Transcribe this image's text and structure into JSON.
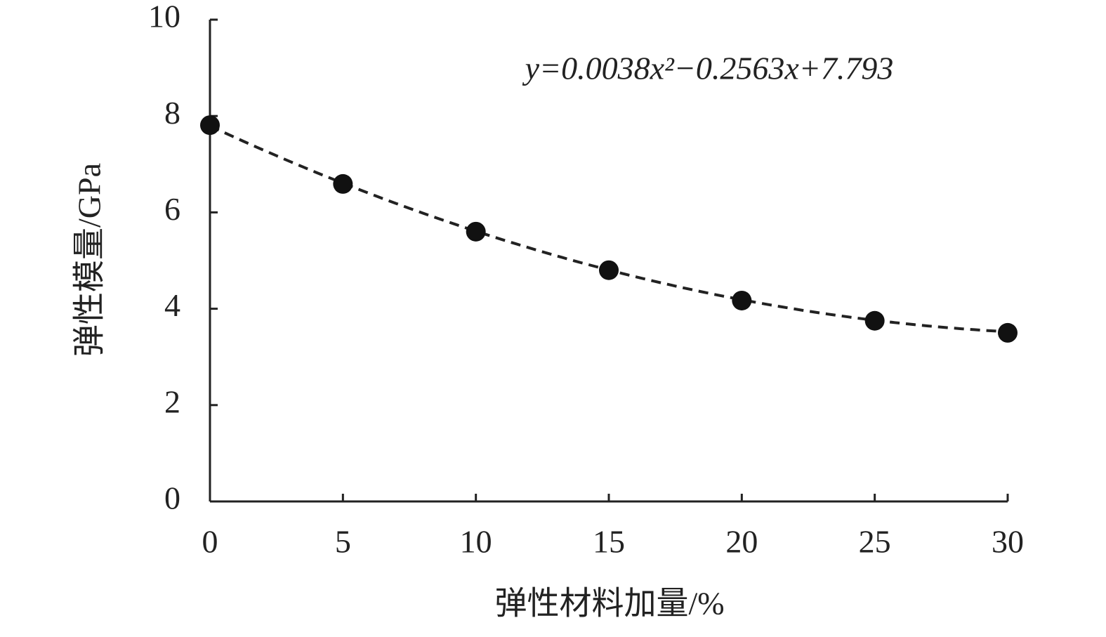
{
  "chart_data": {
    "type": "scatter",
    "x_label": "弹性材料加量/%",
    "y_label": "弹性模量/GPa",
    "annotation": "y=0.0038x²−0.2563x+7.793",
    "x": [
      0,
      5,
      10,
      15,
      20,
      25,
      30
    ],
    "values": [
      7.81,
      6.59,
      5.6,
      4.8,
      4.17,
      3.75,
      3.5
    ],
    "color": "#111111",
    "trendline": {
      "coefficients": [
        0.0038,
        -0.2563,
        7.793
      ]
    },
    "xlim": [
      0,
      30
    ],
    "xticks": [
      0,
      5,
      10,
      15,
      20,
      25,
      30
    ],
    "ylim": [
      0,
      10
    ],
    "yticks": [
      0,
      2,
      4,
      6,
      8,
      10
    ],
    "grid": false
  }
}
